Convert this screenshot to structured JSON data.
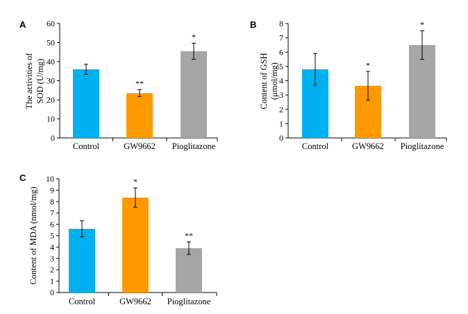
{
  "chart_data": [
    {
      "panel": "A",
      "type": "bar",
      "categories": [
        "Control",
        "GW9662",
        "Pioglitazone"
      ],
      "values": [
        36,
        23.5,
        45.5
      ],
      "errors": [
        2.7,
        1.8,
        4.2
      ],
      "significance": [
        "",
        "**",
        "*"
      ],
      "ylabel_lines": [
        "The activities of",
        "SOD (U/mg)"
      ],
      "ylim": [
        0,
        60
      ],
      "yticks": [
        0,
        10,
        20,
        30,
        40,
        50,
        60
      ],
      "colors": [
        "#00B0F0",
        "#FF9900",
        "#A6A6A6"
      ]
    },
    {
      "panel": "B",
      "type": "bar",
      "categories": [
        "Control",
        "GW9662",
        "Pioglitazone"
      ],
      "values": [
        4.8,
        3.65,
        6.5
      ],
      "errors": [
        1.1,
        1.0,
        1.0
      ],
      "significance": [
        "",
        "*",
        "*"
      ],
      "ylabel_lines": [
        "Content of GSH",
        "(μmol/mg)"
      ],
      "ylim": [
        0,
        8
      ],
      "yticks": [
        0,
        1,
        2,
        3,
        4,
        5,
        6,
        7,
        8
      ],
      "colors": [
        "#00B0F0",
        "#FF9900",
        "#A6A6A6"
      ]
    },
    {
      "panel": "C",
      "type": "bar",
      "categories": [
        "Control",
        "GW9662",
        "Pioglitazone"
      ],
      "values": [
        5.6,
        8.35,
        3.9
      ],
      "errors": [
        0.7,
        0.85,
        0.55
      ],
      "significance": [
        "",
        "*",
        "**"
      ],
      "ylabel_lines": [
        "Content of MDA (nmol/mg)"
      ],
      "ylim": [
        0,
        10
      ],
      "yticks": [
        0,
        1,
        2,
        3,
        4,
        5,
        6,
        7,
        8,
        9,
        10
      ],
      "colors": [
        "#00B0F0",
        "#FF9900",
        "#A6A6A6"
      ]
    }
  ]
}
